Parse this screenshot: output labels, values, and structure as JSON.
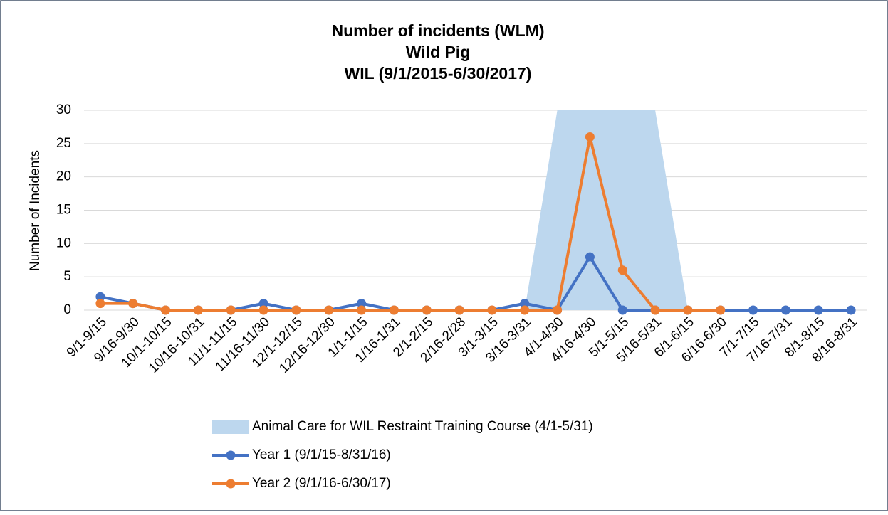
{
  "chart_data": {
    "type": "line",
    "title": [
      "Number of incidents (WLM)",
      "Wild Pig",
      "WIL (9/1/2015-6/30/2017)"
    ],
    "y_label": "Number of Incidents",
    "categories": [
      "9/1-9/15",
      "9/16-9/30",
      "10/1-10/15",
      "10/16-10/31",
      "11/1-11/15",
      "11/16-11/30",
      "12/1-12/15",
      "12/16-12/30",
      "1/1-1/15",
      "1/16-1/31",
      "2/1-2/15",
      "2/16-2/28",
      "3/1-3/15",
      "3/16-3/31",
      "4/1-4/30",
      "4/16-4/30",
      "5/1-5/15",
      "5/16-5/31",
      "6/1-6/15",
      "6/16-6/30",
      "7/1-7/15",
      "7/16-7/31",
      "8/1-8/15",
      "8/16-8/31"
    ],
    "series": [
      {
        "name": "Animal Care for WIL Restraint Training Course (4/1-5/31)",
        "kind": "area",
        "color": "#bdd7ee",
        "values": [
          null,
          null,
          null,
          null,
          null,
          null,
          null,
          null,
          null,
          null,
          null,
          null,
          null,
          0,
          30,
          30,
          30,
          30,
          0,
          null,
          null,
          null,
          null,
          null
        ]
      },
      {
        "name": "Year 1 (9/1/15-8/31/16)",
        "kind": "line",
        "color": "#4472c4",
        "values": [
          2,
          1,
          0,
          0,
          0,
          1,
          0,
          0,
          1,
          0,
          0,
          0,
          0,
          1,
          0,
          8,
          0,
          0,
          0,
          0,
          0,
          0,
          0,
          0
        ]
      },
      {
        "name": "Year 2 (9/1/16-6/30/17)",
        "kind": "line",
        "color": "#ed7d31",
        "values": [
          1,
          1,
          0,
          0,
          0,
          0,
          0,
          0,
          0,
          0,
          0,
          0,
          0,
          0,
          0,
          26,
          6,
          0,
          0,
          0,
          null,
          null,
          null,
          null
        ]
      }
    ],
    "ylim": [
      0,
      30
    ],
    "yticks": [
      0,
      5,
      10,
      15,
      20,
      25,
      30
    ],
    "grid": true,
    "legend": "bottom"
  }
}
